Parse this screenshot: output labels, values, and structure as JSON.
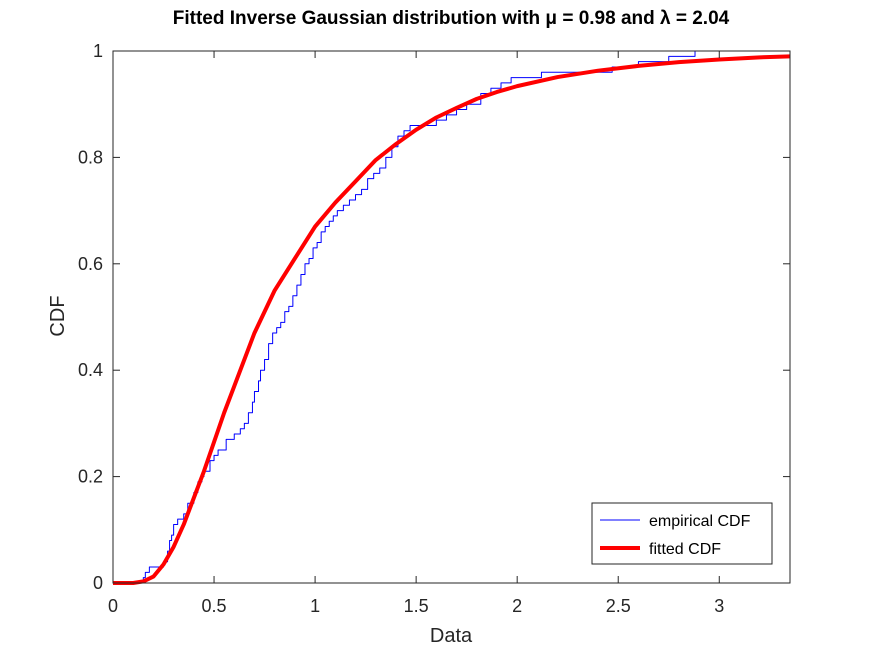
{
  "chart_data": {
    "type": "line",
    "title": "Fitted Inverse Gaussian distribution with μ = 0.98 and λ = 2.04",
    "xlabel": "Data",
    "ylabel": "CDF",
    "xlim": [
      0,
      3.35
    ],
    "ylim": [
      0,
      1
    ],
    "xticks": [
      0,
      0.5,
      1,
      1.5,
      2,
      2.5,
      3
    ],
    "xtick_labels": [
      "0",
      "0.5",
      "1",
      "1.5",
      "2",
      "2.5",
      "3"
    ],
    "yticks": [
      0,
      0.2,
      0.4,
      0.6,
      0.8,
      1
    ],
    "ytick_labels": [
      "0",
      "0.2",
      "0.4",
      "0.6",
      "0.8",
      "1"
    ],
    "grid": false,
    "legend_position": "bottom-right",
    "fit_params": {
      "mu": 0.98,
      "lambda": 2.04
    },
    "series": [
      {
        "name": "empirical CDF",
        "style": "step",
        "color": "#0000ff",
        "x": [
          0.0,
          0.15,
          0.16,
          0.18,
          0.25,
          0.27,
          0.28,
          0.29,
          0.3,
          0.32,
          0.35,
          0.37,
          0.4,
          0.42,
          0.44,
          0.45,
          0.48,
          0.5,
          0.52,
          0.56,
          0.6,
          0.63,
          0.65,
          0.67,
          0.69,
          0.7,
          0.72,
          0.73,
          0.75,
          0.77,
          0.79,
          0.81,
          0.83,
          0.85,
          0.87,
          0.89,
          0.91,
          0.93,
          0.95,
          0.97,
          0.99,
          1.01,
          1.03,
          1.05,
          1.07,
          1.09,
          1.11,
          1.14,
          1.17,
          1.2,
          1.23,
          1.26,
          1.29,
          1.32,
          1.35,
          1.38,
          1.41,
          1.44,
          1.47,
          1.5,
          1.6,
          1.65,
          1.7,
          1.75,
          1.82,
          1.87,
          1.92,
          1.97,
          2.12,
          2.47,
          2.6,
          2.75,
          2.88,
          3.35
        ],
        "y": [
          0.0,
          0.01,
          0.02,
          0.03,
          0.04,
          0.06,
          0.08,
          0.09,
          0.11,
          0.12,
          0.13,
          0.15,
          0.17,
          0.19,
          0.2,
          0.21,
          0.23,
          0.24,
          0.25,
          0.27,
          0.28,
          0.29,
          0.3,
          0.32,
          0.34,
          0.36,
          0.38,
          0.4,
          0.42,
          0.45,
          0.47,
          0.48,
          0.49,
          0.51,
          0.52,
          0.54,
          0.56,
          0.58,
          0.6,
          0.61,
          0.63,
          0.64,
          0.66,
          0.67,
          0.68,
          0.69,
          0.7,
          0.71,
          0.72,
          0.73,
          0.74,
          0.76,
          0.77,
          0.78,
          0.8,
          0.82,
          0.84,
          0.85,
          0.86,
          0.86,
          0.87,
          0.88,
          0.89,
          0.9,
          0.92,
          0.93,
          0.94,
          0.95,
          0.96,
          0.97,
          0.98,
          0.99,
          1.0,
          1.0
        ]
      },
      {
        "name": "fitted CDF",
        "style": "line",
        "color": "#ff0000",
        "x": [
          0.0,
          0.1,
          0.15,
          0.2,
          0.25,
          0.3,
          0.35,
          0.4,
          0.45,
          0.5,
          0.55,
          0.6,
          0.7,
          0.8,
          0.9,
          1.0,
          1.1,
          1.2,
          1.3,
          1.4,
          1.5,
          1.6,
          1.7,
          1.8,
          1.9,
          2.0,
          2.2,
          2.4,
          2.6,
          2.8,
          3.0,
          3.2,
          3.35
        ],
        "y": [
          0.0,
          0.0,
          0.003,
          0.012,
          0.035,
          0.068,
          0.11,
          0.16,
          0.21,
          0.265,
          0.32,
          0.37,
          0.47,
          0.55,
          0.61,
          0.67,
          0.715,
          0.755,
          0.795,
          0.825,
          0.852,
          0.875,
          0.893,
          0.91,
          0.923,
          0.934,
          0.951,
          0.963,
          0.972,
          0.979,
          0.984,
          0.988,
          0.99
        ]
      }
    ]
  }
}
